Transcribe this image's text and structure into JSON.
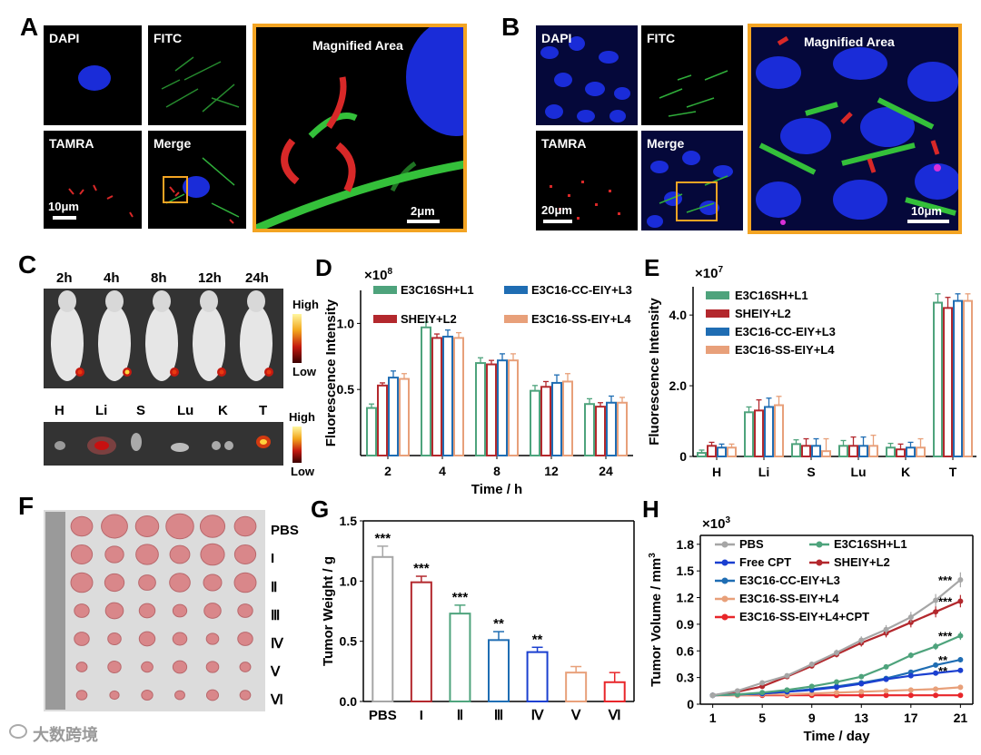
{
  "panels": {
    "A": {
      "letter": "A",
      "dapi": "DAPI",
      "fitc": "FITC",
      "tamra": "TAMRA",
      "merge": "Merge",
      "magnified": "Magnified Area",
      "scale1": "10μm",
      "scale2": "2μm"
    },
    "B": {
      "letter": "B",
      "dapi": "DAPI",
      "fitc": "FITC",
      "tamra": "TAMRA",
      "merge": "Merge",
      "magnified": "Magnified Area",
      "scale1": "20μm",
      "scale2": "10μm"
    },
    "C": {
      "letter": "C",
      "times": [
        "2h",
        "4h",
        "8h",
        "12h",
        "24h"
      ],
      "organs": [
        "H",
        "Li",
        "S",
        "Lu",
        "K",
        "T"
      ],
      "high": "High",
      "low": "Low"
    },
    "F": {
      "letter": "F",
      "groups": [
        "PBS",
        "I",
        "Ⅱ",
        "Ⅲ",
        "Ⅳ",
        "Ⅴ",
        "Ⅵ"
      ]
    }
  },
  "watermark": "大数跨境",
  "colors": {
    "gray": "#a6a6a6",
    "green": "#4ea37c",
    "red": "#b3282d",
    "blue": "#1f6db3",
    "peach": "#e8a07a",
    "brightred": "#e8262a",
    "darkblue": "#1a3fd0",
    "orange": "#f3a423"
  },
  "chart_data": [
    {
      "id": "D",
      "type": "bar",
      "letter": "D",
      "categories": [
        "2",
        "4",
        "8",
        "12",
        "24"
      ],
      "xlabel": "Time / h",
      "ylabel": "Fluorescence Intensity",
      "exponent": "×10",
      "exponent_power": "8",
      "ylim": [
        0,
        1.25
      ],
      "yticks": [
        "0.5",
        "1.0"
      ],
      "series": [
        {
          "name": "E3C16SH+L1",
          "color": "#4ea37c",
          "values": [
            0.36,
            0.97,
            0.7,
            0.49,
            0.39
          ],
          "err": [
            0.03,
            0.04,
            0.04,
            0.04,
            0.04
          ]
        },
        {
          "name": "SHEIY+L2",
          "color": "#b3282d",
          "values": [
            0.53,
            0.89,
            0.69,
            0.52,
            0.37
          ],
          "err": [
            0.02,
            0.03,
            0.03,
            0.04,
            0.03
          ]
        },
        {
          "name": "E3C16-CC-EIY+L3",
          "color": "#1f6db3",
          "values": [
            0.59,
            0.9,
            0.72,
            0.55,
            0.4
          ],
          "err": [
            0.05,
            0.05,
            0.05,
            0.06,
            0.05
          ]
        },
        {
          "name": "E3C16-SS-EIY+L4",
          "color": "#e8a07a",
          "values": [
            0.58,
            0.89,
            0.72,
            0.56,
            0.4
          ],
          "err": [
            0.04,
            0.04,
            0.05,
            0.06,
            0.04
          ]
        }
      ]
    },
    {
      "id": "E",
      "type": "bar",
      "letter": "E",
      "categories": [
        "H",
        "Li",
        "S",
        "Lu",
        "K",
        "T"
      ],
      "ylabel": "Fluorescence Intensity",
      "exponent": "×10",
      "exponent_power": "7",
      "ylim": [
        0,
        4.8
      ],
      "yticks": [
        "0",
        "2.0",
        "4.0"
      ],
      "series": [
        {
          "name": "E3C16SH+L1",
          "color": "#4ea37c",
          "values": [
            0.1,
            1.25,
            0.35,
            0.3,
            0.25,
            4.35
          ],
          "err": [
            0.08,
            0.15,
            0.12,
            0.15,
            0.12,
            0.25
          ]
        },
        {
          "name": "SHEIY+L2",
          "color": "#b3282d",
          "values": [
            0.3,
            1.3,
            0.3,
            0.3,
            0.2,
            4.2
          ],
          "err": [
            0.1,
            0.3,
            0.2,
            0.25,
            0.15,
            0.3
          ]
        },
        {
          "name": "E3C16-CC-EIY+L3",
          "color": "#1f6db3",
          "values": [
            0.25,
            1.4,
            0.3,
            0.3,
            0.25,
            4.4
          ],
          "err": [
            0.1,
            0.25,
            0.2,
            0.25,
            0.15,
            0.2
          ]
        },
        {
          "name": "E3C16-SS-EIY+L4",
          "color": "#e8a07a",
          "values": [
            0.25,
            1.45,
            0.15,
            0.3,
            0.25,
            4.4
          ],
          "err": [
            0.1,
            0.25,
            0.35,
            0.3,
            0.25,
            0.2
          ]
        }
      ]
    },
    {
      "id": "G",
      "type": "bar",
      "letter": "G",
      "categories": [
        "PBS",
        "I",
        "Ⅱ",
        "Ⅲ",
        "Ⅳ",
        "Ⅴ",
        "Ⅵ"
      ],
      "ylabel": "Tumor Weight / g",
      "ylim": [
        0,
        1.5
      ],
      "yticks": [
        "0.0",
        "0.5",
        "1.0",
        "1.5"
      ],
      "colors": [
        "#a6a6a6",
        "#b3282d",
        "#4ea37c",
        "#1f6db3",
        "#1a3fd0",
        "#e8a07a",
        "#e8262a"
      ],
      "values": [
        1.2,
        0.99,
        0.73,
        0.51,
        0.41,
        0.24,
        0.16
      ],
      "err": [
        0.09,
        0.05,
        0.07,
        0.07,
        0.04,
        0.05,
        0.08
      ],
      "sig": [
        "***",
        "***",
        "***",
        "**",
        "**",
        "",
        ""
      ]
    },
    {
      "id": "H",
      "type": "line",
      "letter": "H",
      "x": [
        1,
        3,
        5,
        7,
        9,
        11,
        13,
        15,
        17,
        19,
        21
      ],
      "xticks": [
        "1",
        "5",
        "9",
        "13",
        "17",
        "21"
      ],
      "xlabel": "Time / day",
      "ylabel": "Tumor Volume / mm",
      "ylabel_sup": "3",
      "exponent": "×10",
      "exponent_power": "3",
      "xlim": [
        0,
        22
      ],
      "ylim": [
        0,
        1.9
      ],
      "yticks": [
        "0",
        "0.3",
        "0.6",
        "0.9",
        "1.2",
        "1.5",
        "1.8"
      ],
      "series": [
        {
          "name": "PBS",
          "color": "#a6a6a6",
          "values": [
            0.1,
            0.15,
            0.24,
            0.32,
            0.45,
            0.58,
            0.72,
            0.84,
            0.98,
            1.17,
            1.4
          ],
          "sig": "***"
        },
        {
          "name": "E3C16SH+L1",
          "color": "#4ea37c",
          "values": [
            0.1,
            0.11,
            0.13,
            0.16,
            0.2,
            0.25,
            0.31,
            0.42,
            0.55,
            0.65,
            0.77
          ],
          "sig": "***"
        },
        {
          "name": "Free CPT",
          "color": "#1a3fd0",
          "values": [
            0.1,
            0.11,
            0.12,
            0.14,
            0.16,
            0.19,
            0.23,
            0.28,
            0.32,
            0.35,
            0.38
          ],
          "sig": "**"
        },
        {
          "name": "SHEIY+L2",
          "color": "#b3282d",
          "values": [
            0.1,
            0.14,
            0.2,
            0.31,
            0.43,
            0.56,
            0.69,
            0.8,
            0.92,
            1.04,
            1.16
          ],
          "sig": "***"
        },
        {
          "name": "E3C16-CC-EIY+L3",
          "color": "#1f6db3",
          "values": [
            0.1,
            0.11,
            0.12,
            0.14,
            0.17,
            0.2,
            0.24,
            0.29,
            0.36,
            0.44,
            0.5
          ],
          "sig": "**"
        },
        {
          "name": "E3C16-SS-EIY+L4",
          "color": "#e8a07a",
          "values": [
            0.1,
            0.1,
            0.11,
            0.11,
            0.12,
            0.13,
            0.14,
            0.15,
            0.16,
            0.17,
            0.19
          ],
          "sig": ""
        },
        {
          "name": "E3C16-SS-EIY+L4+CPT",
          "color": "#e8262a",
          "values": [
            0.1,
            0.1,
            0.1,
            0.1,
            0.1,
            0.1,
            0.1,
            0.1,
            0.1,
            0.1,
            0.1
          ],
          "sig": ""
        }
      ]
    }
  ]
}
